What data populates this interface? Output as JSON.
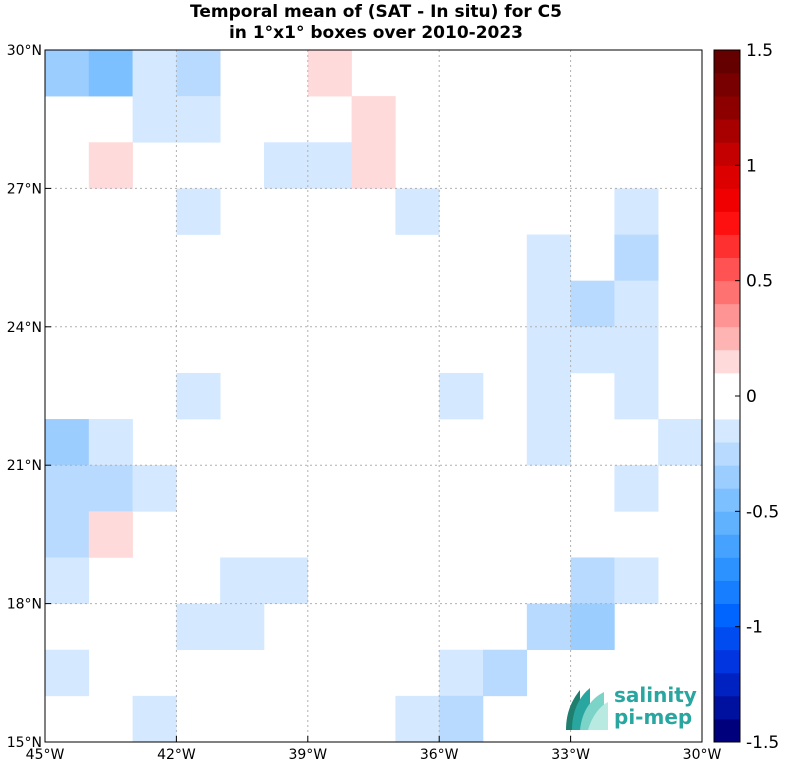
{
  "title_line1": "Temporal mean of (SAT - In situ) for C5",
  "title_line2": "in 1°x1° boxes over 2010-2023",
  "logo": {
    "line1": "salinity",
    "line2": "pi-mep",
    "color": "#2aa6a0"
  },
  "map": {
    "lon_range": [
      -45,
      -30
    ],
    "lat_range": [
      15,
      30
    ],
    "x_ticks": [
      "45°W",
      "42°W",
      "39°W",
      "36°W",
      "33°W",
      "30°W"
    ],
    "y_ticks": [
      "15°N",
      "18°N",
      "21°N",
      "24°N",
      "27°N",
      "30°N"
    ],
    "grid": "dotted"
  },
  "colorbar": {
    "range": [
      -1.5,
      1.5
    ],
    "ticks": [
      "1.5",
      "1",
      "0.5",
      "0",
      "-0.5",
      "-1",
      "-1.5"
    ],
    "colors": [
      "#00007c",
      "#0011a0",
      "#0022c0",
      "#0035e0",
      "#004cf0",
      "#0064ff",
      "#167eff",
      "#2c92ff",
      "#45a2ff",
      "#60b2ff",
      "#7cc0ff",
      "#9ccdff",
      "#b8daff",
      "#d4e8ff",
      "#ffffff",
      "#ffffff",
      "#ffdada",
      "#ffb4b4",
      "#ff9494",
      "#ff7272",
      "#ff5252",
      "#ff3030",
      "#ff1010",
      "#f00000",
      "#dc0000",
      "#c40000",
      "#a80000",
      "#8c0000",
      "#780000",
      "#640000"
    ]
  },
  "chart_data": {
    "type": "heatmap",
    "title": "Temporal mean of (SAT - In situ) for C5 in 1°x1° boxes over 2010-2023",
    "xlim": [
      -45,
      -30
    ],
    "ylim": [
      15,
      30
    ],
    "cell_size_deg": 1,
    "cells": [
      {
        "lon": -45,
        "lat": 29,
        "value": -0.3
      },
      {
        "lon": -44,
        "lat": 29,
        "value": -0.42
      },
      {
        "lon": -43,
        "lat": 29,
        "value": -0.1
      },
      {
        "lon": -42,
        "lat": 29,
        "value": -0.22
      },
      {
        "lon": -39,
        "lat": 29,
        "value": 0.12
      },
      {
        "lon": -43,
        "lat": 28,
        "value": -0.1
      },
      {
        "lon": -42,
        "lat": 28,
        "value": -0.1
      },
      {
        "lon": -38,
        "lat": 28,
        "value": 0.12
      },
      {
        "lon": -44,
        "lat": 27,
        "value": 0.15
      },
      {
        "lon": -40,
        "lat": 27,
        "value": -0.1
      },
      {
        "lon": -39,
        "lat": 27,
        "value": -0.1
      },
      {
        "lon": -38,
        "lat": 27,
        "value": 0.12
      },
      {
        "lon": -42,
        "lat": 26,
        "value": -0.1
      },
      {
        "lon": -37,
        "lat": 26,
        "value": -0.1
      },
      {
        "lon": -32,
        "lat": 26,
        "value": -0.1
      },
      {
        "lon": -34,
        "lat": 25,
        "value": -0.1
      },
      {
        "lon": -32,
        "lat": 25,
        "value": -0.22
      },
      {
        "lon": -34,
        "lat": 24,
        "value": -0.1
      },
      {
        "lon": -33,
        "lat": 24,
        "value": -0.22
      },
      {
        "lon": -32,
        "lat": 24,
        "value": -0.1
      },
      {
        "lon": -34,
        "lat": 23,
        "value": -0.1
      },
      {
        "lon": -33,
        "lat": 23,
        "value": -0.1
      },
      {
        "lon": -32,
        "lat": 23,
        "value": -0.1
      },
      {
        "lon": -42,
        "lat": 22,
        "value": -0.1
      },
      {
        "lon": -36,
        "lat": 22,
        "value": -0.1
      },
      {
        "lon": -34,
        "lat": 22,
        "value": -0.1
      },
      {
        "lon": -32,
        "lat": 22,
        "value": -0.1
      },
      {
        "lon": -45,
        "lat": 21,
        "value": -0.35
      },
      {
        "lon": -44,
        "lat": 21,
        "value": -0.1
      },
      {
        "lon": -34,
        "lat": 21,
        "value": -0.1
      },
      {
        "lon": -31,
        "lat": 21,
        "value": -0.1
      },
      {
        "lon": -45,
        "lat": 20,
        "value": -0.22
      },
      {
        "lon": -44,
        "lat": 20,
        "value": -0.22
      },
      {
        "lon": -43,
        "lat": 20,
        "value": -0.1
      },
      {
        "lon": -32,
        "lat": 20,
        "value": -0.1
      },
      {
        "lon": -45,
        "lat": 19,
        "value": -0.22
      },
      {
        "lon": -44,
        "lat": 19,
        "value": 0.12
      },
      {
        "lon": -45,
        "lat": 18,
        "value": -0.1
      },
      {
        "lon": -41,
        "lat": 18,
        "value": -0.1
      },
      {
        "lon": -40,
        "lat": 18,
        "value": -0.1
      },
      {
        "lon": -33,
        "lat": 18,
        "value": -0.22
      },
      {
        "lon": -32,
        "lat": 18,
        "value": -0.1
      },
      {
        "lon": -42,
        "lat": 17,
        "value": -0.1
      },
      {
        "lon": -41,
        "lat": 17,
        "value": -0.1
      },
      {
        "lon": -34,
        "lat": 17,
        "value": -0.22
      },
      {
        "lon": -33,
        "lat": 17,
        "value": -0.3
      },
      {
        "lon": -45,
        "lat": 16,
        "value": -0.1
      },
      {
        "lon": -36,
        "lat": 16,
        "value": -0.1
      },
      {
        "lon": -35,
        "lat": 16,
        "value": -0.22
      },
      {
        "lon": -43,
        "lat": 15,
        "value": -0.1
      },
      {
        "lon": -37,
        "lat": 15,
        "value": -0.1
      },
      {
        "lon": -36,
        "lat": 15,
        "value": -0.22
      }
    ]
  }
}
